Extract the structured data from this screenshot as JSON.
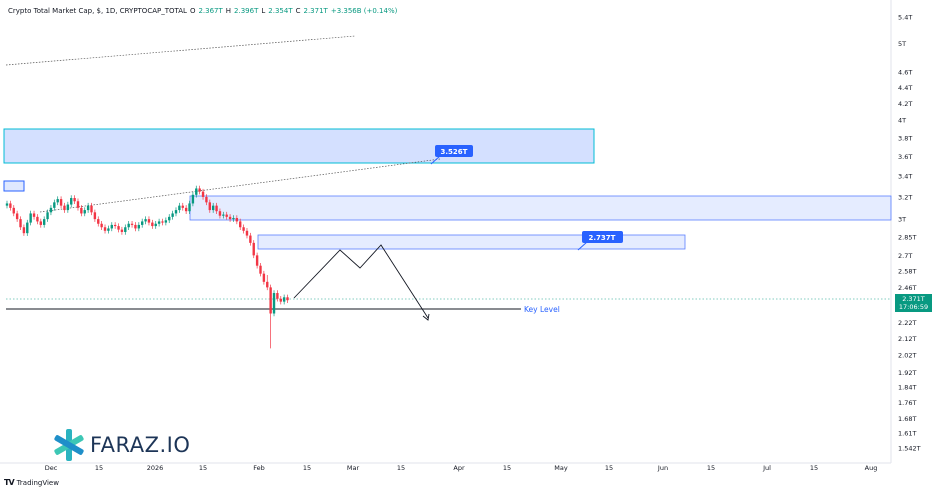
{
  "header": {
    "symbol": "Crypto Total Market Cap, $, 1D, CRYPTOCAP_TOTAL",
    "o_label": "O",
    "o_value": "2.367T",
    "h_label": "H",
    "h_value": "2.396T",
    "l_label": "L",
    "l_value": "2.354T",
    "c_label": "C",
    "c_value": "2.371T",
    "change": "+3.356B (+0.14%)"
  },
  "price_tag": {
    "price": "2.371T",
    "countdown": "17:06:59",
    "color": "#089981"
  },
  "watermark": {
    "text": "FARAZ.IO",
    "logo_icon": "faraz-star-logo"
  },
  "footer": {
    "brand": "TradingView",
    "logo_icon": "tradingview-logo"
  },
  "colors": {
    "up": "#089981",
    "down": "#f23645",
    "zone_fill": "#2962ff",
    "zone_border": "#00bcd4",
    "callout": "#2962ff",
    "key_text": "#2962ff"
  },
  "chart_data": {
    "type": "candlestick",
    "y_scale": "log",
    "ylim": [
      "1.5T",
      "5.6T"
    ],
    "y_ticks": [
      "5.4T",
      "5T",
      "4.6T",
      "4.4T",
      "4.2T",
      "4T",
      "3.8T",
      "3.6T",
      "3.4T",
      "3.2T",
      "3T",
      "2.85T",
      "2.7T",
      "2.58T",
      "2.46T",
      "2.22T",
      "2.12T",
      "2.02T",
      "1.92T",
      "1.84T",
      "1.76T",
      "1.68T",
      "1.61T",
      "1.542T"
    ],
    "x_ticks": [
      "Dec",
      "15",
      "2026",
      "15",
      "Feb",
      "15",
      "Mar",
      "15",
      "Apr",
      "15",
      "May",
      "15",
      "Jun",
      "15",
      "Jul",
      "15",
      "Aug"
    ],
    "last_price": "2.371T",
    "annotations": {
      "callout_upper": "3.526T",
      "callout_lower": "2.737T",
      "key_level_label": "Key Level"
    }
  }
}
